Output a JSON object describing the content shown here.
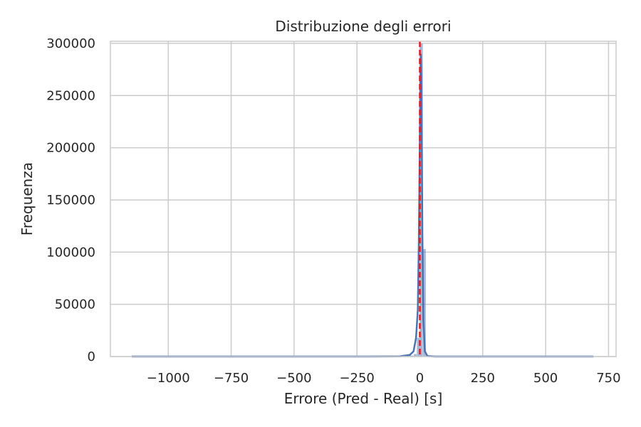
{
  "chart_data": {
    "type": "bar",
    "title": "Distribuzione degli errori",
    "xlabel": "Errore (Pred - Real) [s]",
    "ylabel": "Frequenza",
    "xlim": [
      -1230,
      780
    ],
    "ylim": [
      0,
      302000
    ],
    "xticks": [
      -1000,
      -750,
      -500,
      -250,
      0,
      250,
      500,
      750
    ],
    "xtick_labels": [
      "−1000",
      "−750",
      "−500",
      "−250",
      "0",
      "250",
      "500",
      "750"
    ],
    "yticks": [
      0,
      50000,
      100000,
      150000,
      200000,
      250000,
      300000
    ],
    "ytick_labels": [
      "0",
      "50000",
      "100000",
      "150000",
      "200000",
      "250000",
      "300000"
    ],
    "grid": true,
    "bar_color": "#4c72b0",
    "kde_color": "#4c72b0",
    "vline_color": "#e41a1c",
    "histogram": {
      "bin_width": 12,
      "bins": [
        {
          "x0": -1145,
          "x1": -25,
          "count": 300
        },
        {
          "x0": -24,
          "x1": -12,
          "count": 2500
        },
        {
          "x0": -12,
          "x1": 0,
          "count": 18000
        },
        {
          "x0": 0,
          "x1": 12,
          "count": 300000
        },
        {
          "x0": 12,
          "x1": 24,
          "count": 103000
        },
        {
          "x0": 24,
          "x1": 150,
          "count": 900
        },
        {
          "x0": 150,
          "x1": 690,
          "count": 300
        }
      ]
    },
    "kde": {
      "x": [
        -1145,
        -200,
        -80,
        -40,
        -25,
        -15,
        -8,
        -4,
        0,
        2,
        4,
        6,
        8,
        10,
        14,
        20,
        30,
        60,
        150,
        690
      ],
      "y": [
        0,
        0,
        200,
        1500,
        5000,
        18000,
        45000,
        110000,
        210000,
        262000,
        290000,
        270000,
        200000,
        120000,
        35000,
        5000,
        500,
        0,
        0,
        0
      ]
    },
    "vline_x": 0
  }
}
